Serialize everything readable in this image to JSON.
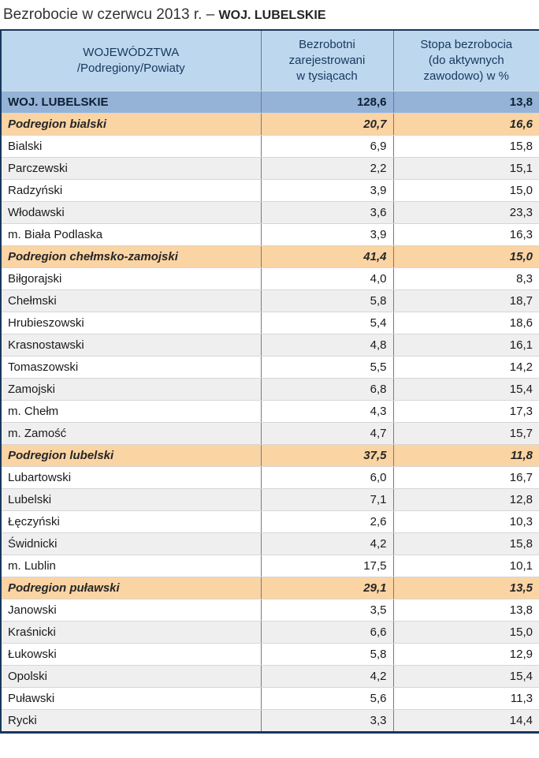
{
  "title": {
    "text": "Bezrobocie w czerwcu 2013 r. –",
    "region": "WOJ. LUBELSKIE"
  },
  "colors": {
    "header_bg": "#BDD7EE",
    "voivodeship_row_bg": "#95B3D7",
    "subregion_row_bg": "#FBD4A4",
    "stripe_row_bg": "#EFEFEF",
    "outer_border": "#17375E"
  },
  "chart_data": {
    "type": "table",
    "title": "Bezrobocie w czerwcu 2013 r. – WOJ. LUBELSKIE",
    "columns": [
      {
        "label": "WOJEWÓDZTWA\n/Podregiony/Powiaty"
      },
      {
        "label": "Bezrobotni\nzarejestrowani\nw tysiącach"
      },
      {
        "label": "Stopa bezrobocia\n(do aktywnych\nzawodowo) w %"
      }
    ],
    "rows": [
      {
        "name": "WOJ. LUBELSKIE",
        "unemployed_thousands": "128,6",
        "rate_percent": "13,8",
        "kind": "voivodeship"
      },
      {
        "name": "Podregion bialski",
        "unemployed_thousands": "20,7",
        "rate_percent": "16,6",
        "kind": "subregion"
      },
      {
        "name": "Bialski",
        "unemployed_thousands": "6,9",
        "rate_percent": "15,8",
        "kind": "powiat"
      },
      {
        "name": "Parczewski",
        "unemployed_thousands": "2,2",
        "rate_percent": "15,1",
        "kind": "powiat"
      },
      {
        "name": "Radzyński",
        "unemployed_thousands": "3,9",
        "rate_percent": "15,0",
        "kind": "powiat"
      },
      {
        "name": "Włodawski",
        "unemployed_thousands": "3,6",
        "rate_percent": "23,3",
        "kind": "powiat"
      },
      {
        "name": "m. Biała Podlaska",
        "unemployed_thousands": "3,9",
        "rate_percent": "16,3",
        "kind": "powiat"
      },
      {
        "name": "Podregion chełmsko-zamojski",
        "unemployed_thousands": "41,4",
        "rate_percent": "15,0",
        "kind": "subregion"
      },
      {
        "name": "Biłgorajski",
        "unemployed_thousands": "4,0",
        "rate_percent": "8,3",
        "kind": "powiat"
      },
      {
        "name": "Chełmski",
        "unemployed_thousands": "5,8",
        "rate_percent": "18,7",
        "kind": "powiat"
      },
      {
        "name": "Hrubieszowski",
        "unemployed_thousands": "5,4",
        "rate_percent": "18,6",
        "kind": "powiat"
      },
      {
        "name": "Krasnostawski",
        "unemployed_thousands": "4,8",
        "rate_percent": "16,1",
        "kind": "powiat"
      },
      {
        "name": "Tomaszowski",
        "unemployed_thousands": "5,5",
        "rate_percent": "14,2",
        "kind": "powiat"
      },
      {
        "name": "Zamojski",
        "unemployed_thousands": "6,8",
        "rate_percent": "15,4",
        "kind": "powiat"
      },
      {
        "name": "m. Chełm",
        "unemployed_thousands": "4,3",
        "rate_percent": "17,3",
        "kind": "powiat"
      },
      {
        "name": "m. Zamość",
        "unemployed_thousands": "4,7",
        "rate_percent": "15,7",
        "kind": "powiat"
      },
      {
        "name": "Podregion lubelski",
        "unemployed_thousands": "37,5",
        "rate_percent": "11,8",
        "kind": "subregion"
      },
      {
        "name": "Lubartowski",
        "unemployed_thousands": "6,0",
        "rate_percent": "16,7",
        "kind": "powiat"
      },
      {
        "name": "Lubelski",
        "unemployed_thousands": "7,1",
        "rate_percent": "12,8",
        "kind": "powiat"
      },
      {
        "name": "Łęczyński",
        "unemployed_thousands": "2,6",
        "rate_percent": "10,3",
        "kind": "powiat"
      },
      {
        "name": "Świdnicki",
        "unemployed_thousands": "4,2",
        "rate_percent": "15,8",
        "kind": "powiat"
      },
      {
        "name": "m. Lublin",
        "unemployed_thousands": "17,5",
        "rate_percent": "10,1",
        "kind": "powiat"
      },
      {
        "name": "Podregion puławski",
        "unemployed_thousands": "29,1",
        "rate_percent": "13,5",
        "kind": "subregion"
      },
      {
        "name": "Janowski",
        "unemployed_thousands": "3,5",
        "rate_percent": "13,8",
        "kind": "powiat"
      },
      {
        "name": "Kraśnicki",
        "unemployed_thousands": "6,6",
        "rate_percent": "15,0",
        "kind": "powiat"
      },
      {
        "name": "Łukowski",
        "unemployed_thousands": "5,8",
        "rate_percent": "12,9",
        "kind": "powiat"
      },
      {
        "name": "Opolski",
        "unemployed_thousands": "4,2",
        "rate_percent": "15,4",
        "kind": "powiat"
      },
      {
        "name": "Puławski",
        "unemployed_thousands": "5,6",
        "rate_percent": "11,3",
        "kind": "powiat"
      },
      {
        "name": "Rycki",
        "unemployed_thousands": "3,3",
        "rate_percent": "14,4",
        "kind": "powiat"
      }
    ]
  }
}
